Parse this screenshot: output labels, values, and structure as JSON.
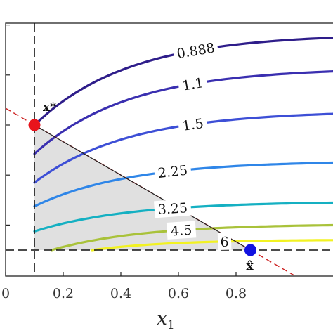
{
  "chart_data": {
    "type": "contour",
    "x_axis": {
      "label": "x",
      "label_subscript": "1",
      "range": [
        0,
        1.0
      ],
      "tick_labels": [
        "0",
        "0.2",
        "0.4",
        "0.6",
        "0.8"
      ],
      "ticks": [
        0,
        0.2,
        0.4,
        0.6,
        0.8
      ]
    },
    "y_axis": {
      "range": [
        -0.1,
        0.9
      ],
      "minor_ticks": [
        0.0,
        0.2,
        0.4,
        0.6,
        0.8
      ]
    },
    "feasible_region": {
      "vertices": [
        [
          0.1,
          0.0
        ],
        [
          0.1,
          0.5
        ],
        [
          0.85,
          0.0
        ]
      ],
      "fill": "#e0e0e0"
    },
    "constraint_line": {
      "points": [
        [
          0.0,
          0.567
        ],
        [
          1.0,
          -0.1
        ]
      ],
      "color": "#cc1f1f",
      "style": "dashed"
    },
    "boundary_lines": [
      {
        "orientation": "vertical",
        "x": 0.1
      },
      {
        "orientation": "horizontal",
        "y": 0.0
      }
    ],
    "contours": [
      {
        "label": "0.888",
        "color": "#2e1d8a",
        "x_start": 0.1,
        "y_start": 0.5,
        "y_end": 0.85
      },
      {
        "label": "1.1",
        "color": "#3a2fb0",
        "x_start": 0.1,
        "y_start": 0.385,
        "y_end": 0.715
      },
      {
        "label": "1.5",
        "color": "#3d4fd6",
        "x_start": 0.1,
        "y_start": 0.27,
        "y_end": 0.545
      },
      {
        "label": "2.25",
        "color": "#2f86e8",
        "x_start": 0.1,
        "y_start": 0.175,
        "y_end": 0.35
      },
      {
        "label": "3.25",
        "color": "#15b0c2",
        "x_start": 0.1,
        "y_start": 0.075,
        "y_end": 0.19
      },
      {
        "label": "4.5",
        "color": "#a9c23a",
        "x_start": 0.16,
        "y_start": 0.0,
        "y_end": 0.1
      },
      {
        "label": "6",
        "color": "#f2f222",
        "x_start": 0.3,
        "y_start": 0.0,
        "y_end": 0.04
      }
    ],
    "points": [
      {
        "label": "x*",
        "x": 0.1,
        "y": 0.5,
        "color": "#e8141c"
      },
      {
        "label": "x̂",
        "x": 0.85,
        "y": 0.0,
        "color": "#1212e0"
      }
    ]
  }
}
